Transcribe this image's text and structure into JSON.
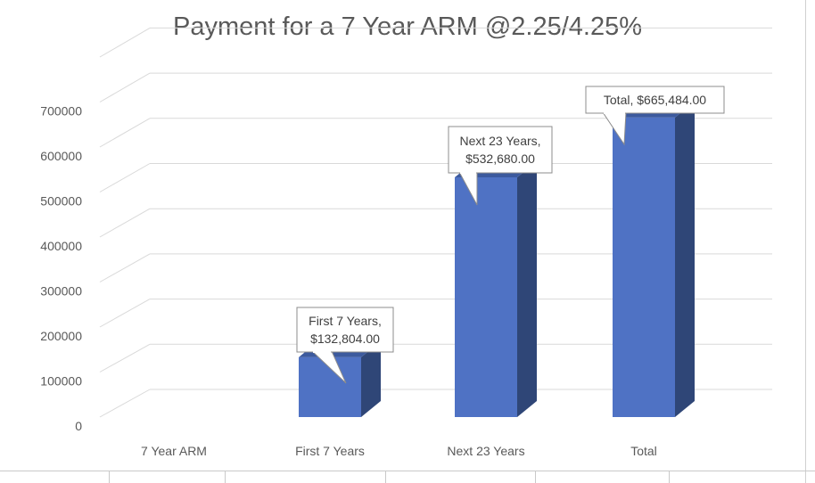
{
  "chart_data": {
    "type": "bar",
    "style": "3d-column",
    "title": "Payment for a 7 Year ARM @2.25/4.25%",
    "categories": [
      "7 Year ARM",
      "First 7 Years",
      "Next 23 Years",
      "Total"
    ],
    "values": [
      0,
      132804,
      532680,
      665484
    ],
    "data_labels": [
      null,
      [
        "First 7 Years,",
        "$132,804.00"
      ],
      [
        "Next 23 Years,",
        "$532,680.00"
      ],
      [
        "Total,  $665,484.00"
      ]
    ],
    "y_ticks": [
      "0",
      "100000",
      "200000",
      "300000",
      "400000",
      "500000",
      "600000",
      "700000"
    ],
    "ylim": [
      0,
      700000
    ],
    "grid": true,
    "legend": "none",
    "colors": {
      "bar_front": "#4f72c4",
      "bar_side": "#2f4677",
      "bar_top": "#3c5a9e",
      "grid": "#d9d9d9",
      "text": "#595959"
    }
  }
}
